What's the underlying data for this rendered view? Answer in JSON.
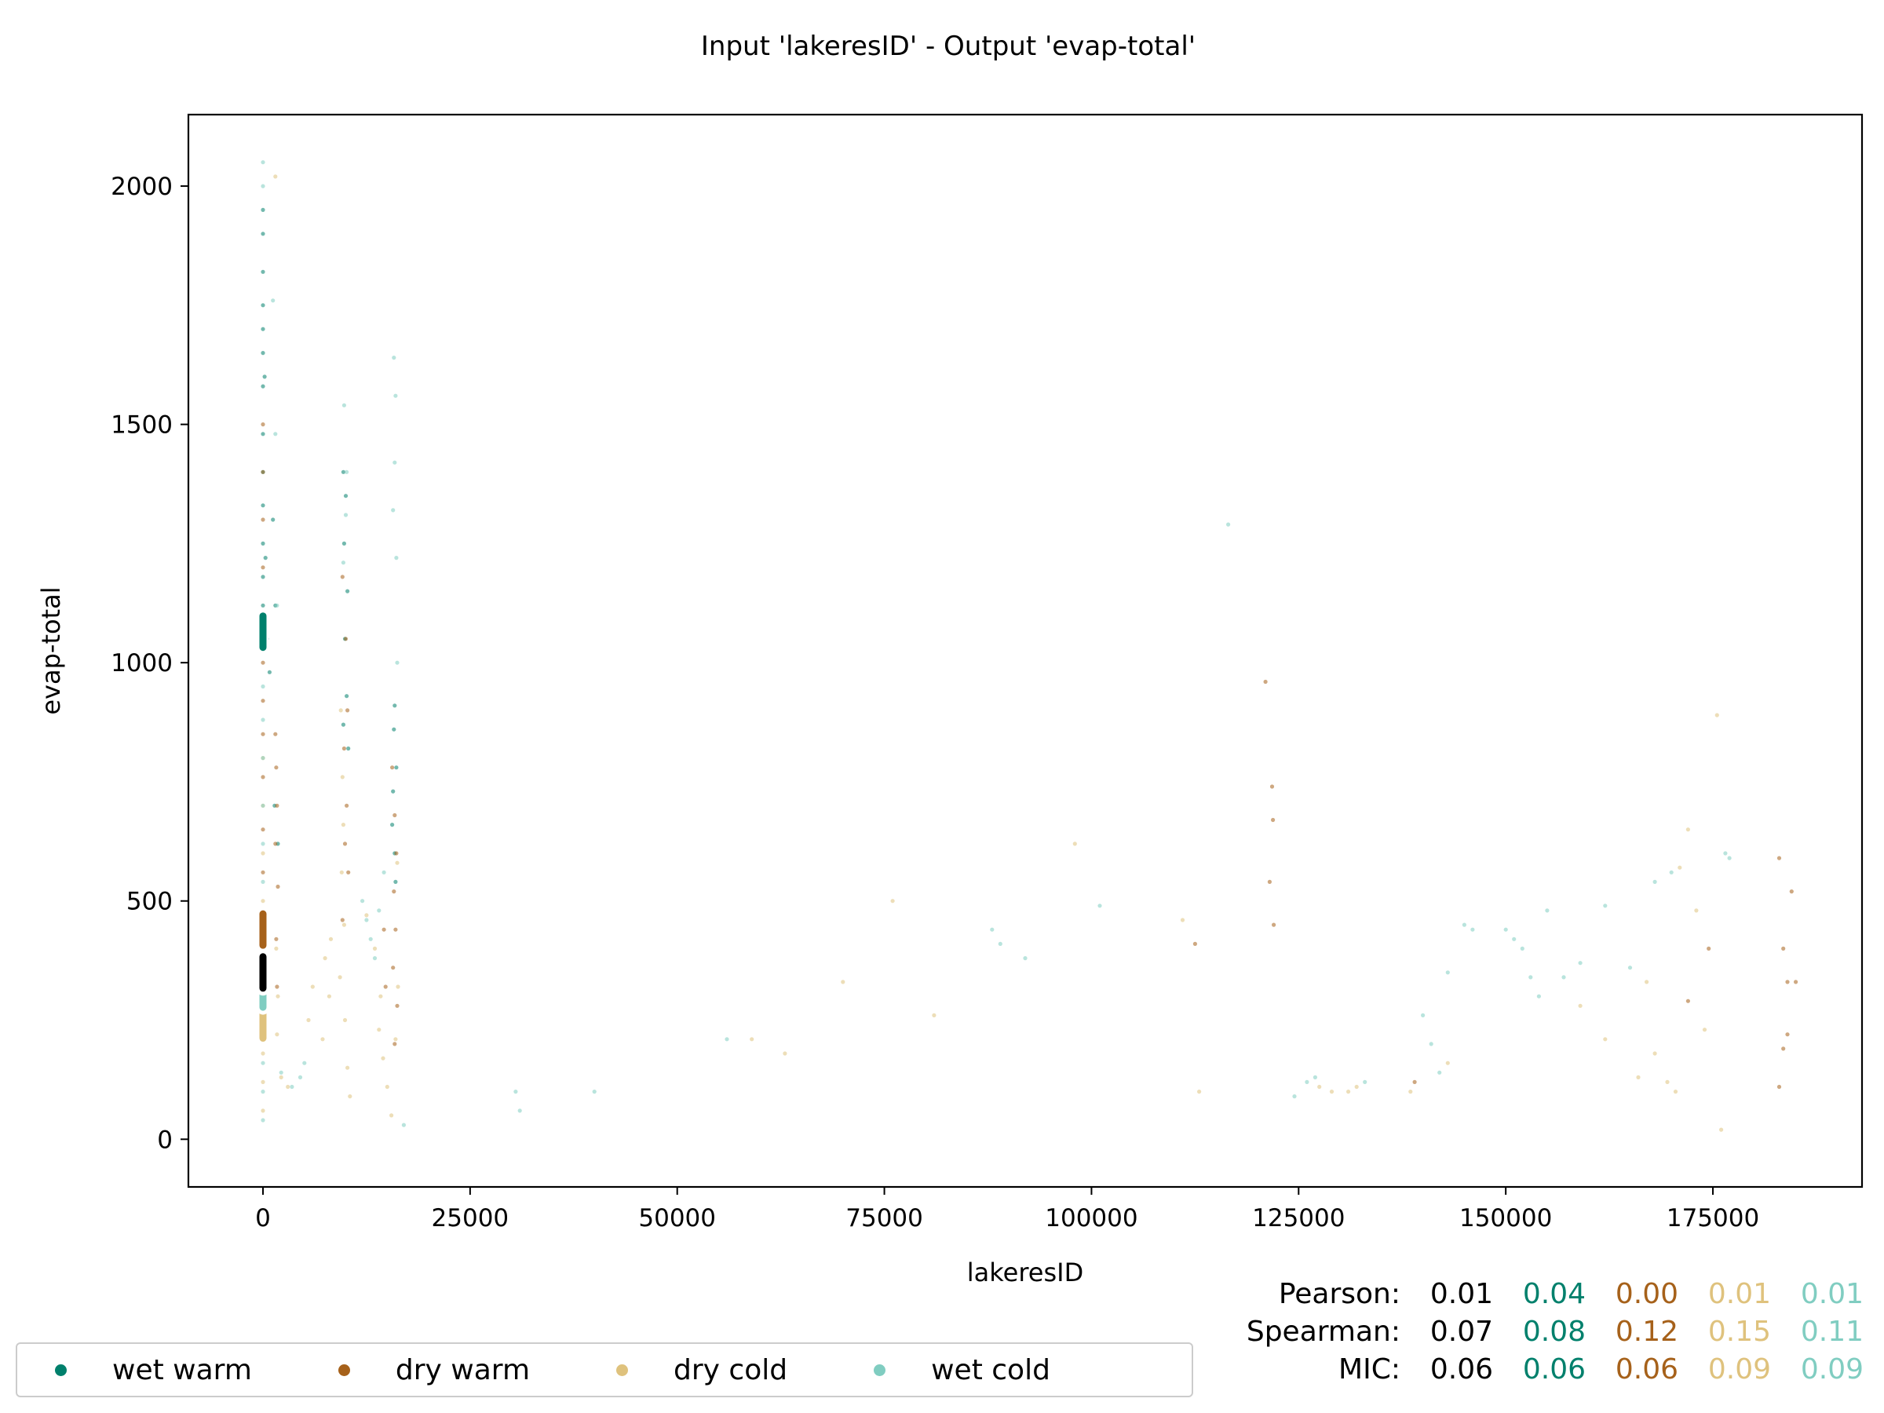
{
  "chart_data": {
    "type": "scatter",
    "title": "Input 'lakeresID' - Output 'evap-total'",
    "xlabel": "lakeresID",
    "ylabel": "evap-total",
    "xlim": [
      -9000,
      193000
    ],
    "ylim": [
      -100,
      2150
    ],
    "xticks": [
      0,
      25000,
      50000,
      75000,
      100000,
      125000,
      150000,
      175000
    ],
    "yticks": [
      0,
      500,
      1000,
      1500,
      2000
    ],
    "grid": false,
    "legend_position": "bottom-left",
    "series": [
      {
        "name": "wet warm",
        "color": "#00806c",
        "median_marker": 1065,
        "points": [
          [
            0,
            1950
          ],
          [
            0,
            1900
          ],
          [
            0,
            1820
          ],
          [
            0,
            1750
          ],
          [
            0,
            1700
          ],
          [
            0,
            1650
          ],
          [
            0,
            1580
          ],
          [
            0,
            1480
          ],
          [
            0,
            1400
          ],
          [
            0,
            1330
          ],
          [
            0,
            1250
          ],
          [
            0,
            1180
          ],
          [
            0,
            1120
          ],
          [
            0,
            1060
          ],
          [
            200,
            1600
          ],
          [
            300,
            1220
          ],
          [
            500,
            1050
          ],
          [
            800,
            980
          ],
          [
            1200,
            1300
          ],
          [
            1500,
            1120
          ],
          [
            9700,
            1400
          ],
          [
            10000,
            1350
          ],
          [
            9800,
            1250
          ],
          [
            10200,
            1150
          ],
          [
            9900,
            1050
          ],
          [
            10100,
            930
          ],
          [
            9700,
            870
          ],
          [
            10300,
            820
          ],
          [
            15900,
            910
          ],
          [
            15800,
            860
          ],
          [
            16100,
            780
          ],
          [
            15700,
            730
          ],
          [
            15600,
            660
          ],
          [
            15900,
            600
          ],
          [
            16000,
            540
          ],
          [
            1400,
            700
          ],
          [
            1800,
            620
          ]
        ]
      },
      {
        "name": "dry warm",
        "color": "#a6611a",
        "median_marker": 440,
        "points": [
          [
            0,
            1500
          ],
          [
            0,
            1400
          ],
          [
            0,
            1300
          ],
          [
            0,
            1200
          ],
          [
            0,
            1100
          ],
          [
            0,
            1000
          ],
          [
            0,
            920
          ],
          [
            0,
            850
          ],
          [
            0,
            760
          ],
          [
            0,
            650
          ],
          [
            0,
            560
          ],
          [
            0,
            480
          ],
          [
            0,
            420
          ],
          [
            1500,
            850
          ],
          [
            1600,
            780
          ],
          [
            1700,
            700
          ],
          [
            1500,
            620
          ],
          [
            1800,
            530
          ],
          [
            1600,
            420
          ],
          [
            1700,
            320
          ],
          [
            9600,
            1180
          ],
          [
            10000,
            1050
          ],
          [
            10200,
            900
          ],
          [
            9800,
            820
          ],
          [
            10100,
            700
          ],
          [
            9900,
            620
          ],
          [
            10300,
            560
          ],
          [
            9600,
            460
          ],
          [
            15600,
            780
          ],
          [
            15900,
            680
          ],
          [
            16100,
            600
          ],
          [
            15800,
            520
          ],
          [
            16000,
            440
          ],
          [
            15700,
            360
          ],
          [
            16200,
            280
          ],
          [
            15900,
            200
          ],
          [
            14600,
            440
          ],
          [
            14800,
            320
          ],
          [
            121000,
            960
          ],
          [
            121800,
            740
          ],
          [
            121900,
            670
          ],
          [
            121500,
            540
          ],
          [
            122000,
            450
          ],
          [
            112500,
            410
          ],
          [
            174500,
            400
          ],
          [
            183000,
            590
          ],
          [
            184500,
            520
          ],
          [
            183500,
            400
          ],
          [
            184000,
            330
          ],
          [
            185000,
            330
          ],
          [
            183500,
            190
          ],
          [
            184000,
            220
          ],
          [
            183000,
            110
          ],
          [
            172000,
            290
          ],
          [
            139000,
            120
          ]
        ]
      },
      {
        "name": "dry cold",
        "color": "#dfc27d",
        "median_marker": 245,
        "points": [
          [
            0,
            800
          ],
          [
            0,
            700
          ],
          [
            0,
            600
          ],
          [
            0,
            500
          ],
          [
            0,
            400
          ],
          [
            0,
            300
          ],
          [
            0,
            240
          ],
          [
            0,
            180
          ],
          [
            0,
            120
          ],
          [
            0,
            60
          ],
          [
            1500,
            2020
          ],
          [
            1600,
            400
          ],
          [
            1800,
            300
          ],
          [
            1700,
            220
          ],
          [
            2200,
            130
          ],
          [
            3000,
            110
          ],
          [
            5500,
            250
          ],
          [
            6000,
            320
          ],
          [
            7500,
            380
          ],
          [
            8200,
            420
          ],
          [
            8000,
            300
          ],
          [
            7200,
            210
          ],
          [
            9400,
            900
          ],
          [
            9600,
            760
          ],
          [
            9700,
            660
          ],
          [
            9500,
            560
          ],
          [
            9800,
            450
          ],
          [
            9300,
            340
          ],
          [
            9900,
            250
          ],
          [
            10200,
            150
          ],
          [
            10500,
            90
          ],
          [
            12500,
            470
          ],
          [
            13500,
            400
          ],
          [
            14200,
            300
          ],
          [
            14000,
            230
          ],
          [
            14500,
            170
          ],
          [
            15000,
            110
          ],
          [
            15500,
            50
          ],
          [
            16000,
            210
          ],
          [
            16300,
            320
          ],
          [
            16200,
            580
          ],
          [
            59000,
            210
          ],
          [
            63000,
            180
          ],
          [
            70000,
            330
          ],
          [
            76000,
            500
          ],
          [
            81000,
            260
          ],
          [
            98000,
            620
          ],
          [
            111000,
            460
          ],
          [
            113000,
            100
          ],
          [
            127500,
            110
          ],
          [
            129000,
            100
          ],
          [
            131000,
            100
          ],
          [
            132000,
            110
          ],
          [
            138500,
            100
          ],
          [
            143000,
            160
          ],
          [
            159000,
            280
          ],
          [
            162000,
            210
          ],
          [
            166000,
            130
          ],
          [
            167000,
            330
          ],
          [
            168000,
            180
          ],
          [
            169500,
            120
          ],
          [
            170500,
            100
          ],
          [
            171000,
            570
          ],
          [
            172000,
            650
          ],
          [
            173000,
            480
          ],
          [
            174000,
            230
          ],
          [
            176000,
            20
          ],
          [
            175500,
            890
          ]
        ]
      },
      {
        "name": "wet cold",
        "color": "#80cdc1",
        "median_marker": 310,
        "points": [
          [
            0,
            2050
          ],
          [
            0,
            2000
          ],
          [
            0,
            950
          ],
          [
            0,
            880
          ],
          [
            0,
            800
          ],
          [
            0,
            700
          ],
          [
            0,
            620
          ],
          [
            0,
            540
          ],
          [
            0,
            470
          ],
          [
            0,
            400
          ],
          [
            0,
            340
          ],
          [
            0,
            280
          ],
          [
            0,
            220
          ],
          [
            0,
            160
          ],
          [
            0,
            100
          ],
          [
            0,
            40
          ],
          [
            1200,
            1760
          ],
          [
            1500,
            1480
          ],
          [
            1700,
            1120
          ],
          [
            2200,
            140
          ],
          [
            3500,
            110
          ],
          [
            4500,
            130
          ],
          [
            5000,
            160
          ],
          [
            9800,
            1540
          ],
          [
            10100,
            1400
          ],
          [
            10000,
            1310
          ],
          [
            9700,
            1210
          ],
          [
            12000,
            500
          ],
          [
            12500,
            460
          ],
          [
            13000,
            420
          ],
          [
            13500,
            380
          ],
          [
            14000,
            480
          ],
          [
            14600,
            560
          ],
          [
            15800,
            1640
          ],
          [
            16000,
            1560
          ],
          [
            15900,
            1420
          ],
          [
            15700,
            1320
          ],
          [
            16100,
            1220
          ],
          [
            16200,
            1000
          ],
          [
            17000,
            30
          ],
          [
            30500,
            100
          ],
          [
            31000,
            60
          ],
          [
            40000,
            100
          ],
          [
            56000,
            210
          ],
          [
            88000,
            440
          ],
          [
            89000,
            410
          ],
          [
            92000,
            380
          ],
          [
            101000,
            490
          ],
          [
            116500,
            1290
          ],
          [
            124500,
            90
          ],
          [
            126000,
            120
          ],
          [
            127000,
            130
          ],
          [
            133000,
            120
          ],
          [
            140000,
            260
          ],
          [
            141000,
            200
          ],
          [
            142000,
            140
          ],
          [
            143000,
            350
          ],
          [
            145000,
            450
          ],
          [
            146000,
            440
          ],
          [
            150000,
            440
          ],
          [
            151000,
            420
          ],
          [
            152000,
            400
          ],
          [
            153000,
            340
          ],
          [
            154000,
            300
          ],
          [
            155000,
            480
          ],
          [
            157000,
            340
          ],
          [
            159000,
            370
          ],
          [
            162000,
            490
          ],
          [
            165000,
            360
          ],
          [
            168000,
            540
          ],
          [
            170000,
            560
          ],
          [
            176500,
            600
          ],
          [
            177000,
            590
          ]
        ]
      }
    ],
    "overall_median_marker": {
      "color": "#000000",
      "value": 350
    },
    "stats": {
      "labels": [
        "Pearson:",
        "Spearman:",
        "MIC:"
      ],
      "columns": [
        {
          "color": "#000000",
          "values": [
            "0.01",
            "0.07",
            "0.06"
          ]
        },
        {
          "color": "#00806c",
          "values": [
            "0.04",
            "0.08",
            "0.06"
          ]
        },
        {
          "color": "#a6611a",
          "values": [
            "0.00",
            "0.12",
            "0.06"
          ]
        },
        {
          "color": "#dfc27d",
          "values": [
            "0.01",
            "0.15",
            "0.09"
          ]
        },
        {
          "color": "#80cdc1",
          "values": [
            "0.01",
            "0.11",
            "0.09"
          ]
        }
      ]
    }
  }
}
